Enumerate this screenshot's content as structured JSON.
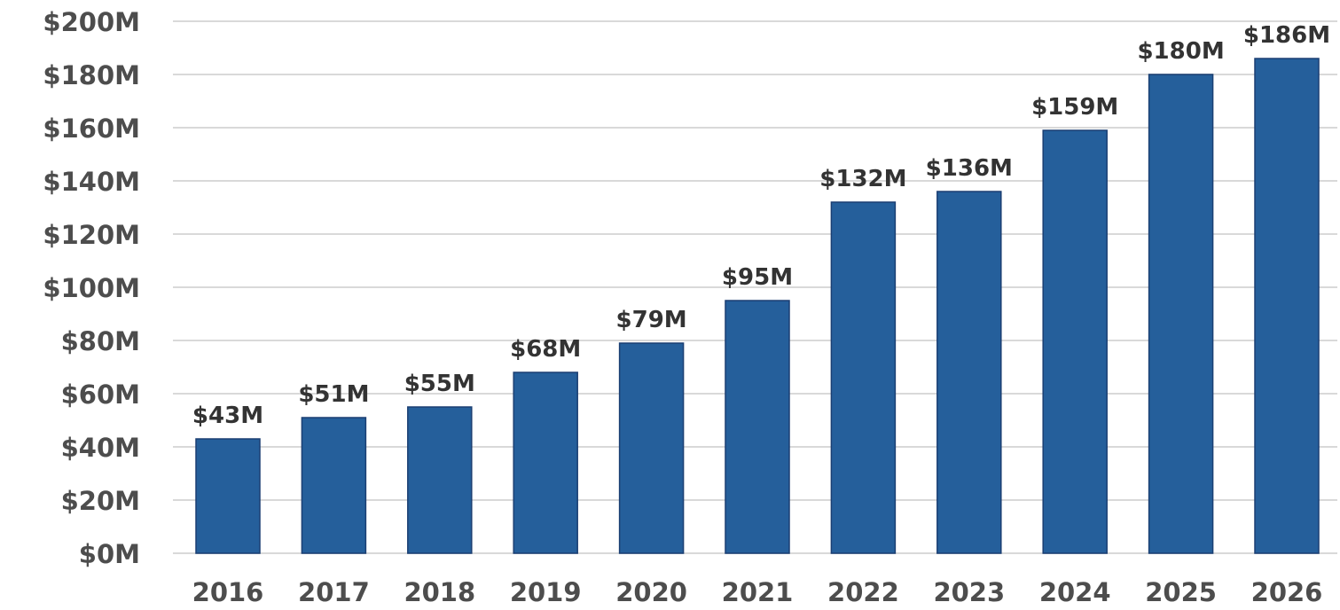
{
  "chart_data": {
    "type": "bar",
    "title": "",
    "xlabel": "",
    "ylabel": "",
    "categories": [
      "2016",
      "2017",
      "2018",
      "2019",
      "2020",
      "2021",
      "2022",
      "2023",
      "2024",
      "2025",
      "2026"
    ],
    "values": [
      43,
      51,
      55,
      68,
      79,
      95,
      132,
      136,
      159,
      180,
      186
    ],
    "data_labels": [
      "$43M",
      "$51M",
      "$55M",
      "$68M",
      "$79M",
      "$95M",
      "$132M",
      "$136M",
      "$159M",
      "$180M",
      "$186M"
    ],
    "unit": "$M",
    "ylim": [
      0,
      200
    ],
    "yticks": [
      0,
      20,
      40,
      60,
      80,
      100,
      120,
      140,
      160,
      180,
      200
    ],
    "ytick_labels": [
      "$0M",
      "$20M",
      "$40M",
      "$60M",
      "$80M",
      "$100M",
      "$120M",
      "$140M",
      "$160M",
      "$180M",
      "$200M"
    ],
    "grid": true,
    "legend": "none",
    "colors": {
      "bar": "#255f9b",
      "bar_edge": "#1b3f73",
      "grid": "#d9d9d9",
      "tick_text": "#4d4d4d",
      "label_text": "#333333"
    }
  }
}
